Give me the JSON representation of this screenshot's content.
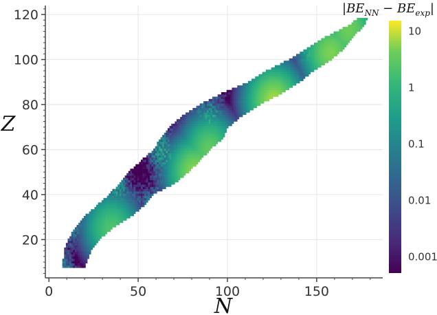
{
  "chart_data": {
    "type": "heatmap",
    "xlabel": "N",
    "ylabel": "Z",
    "colorbar_label": "|BE_NN − BE_exp|",
    "colorbar_label_parts": {
      "open": "|",
      "base1": "BE",
      "sub1": "NN",
      "minus": " − ",
      "base2": "BE",
      "sub2": "exp",
      "close": "|"
    },
    "x_ticks": [
      "0",
      "50",
      "100",
      "150"
    ],
    "y_ticks": [
      "20",
      "40",
      "60",
      "80",
      "100",
      "120"
    ],
    "xlim": [
      -2,
      187
    ],
    "ylim": [
      3,
      124
    ],
    "colorbar": {
      "scale": "log",
      "range": [
        0.0005,
        15
      ],
      "ticks": [
        "10",
        "1",
        "0.1",
        "0.01",
        "0.001"
      ],
      "tick_values": [
        10,
        1,
        0.1,
        0.01,
        0.001
      ],
      "colormap": "viridis"
    },
    "grid": true,
    "nuclide_region": {
      "description": "valley of stability, Z from 8 to 118",
      "n_range_by_z": [
        [
          8,
          8,
          20
        ],
        [
          15,
          9,
          23
        ],
        [
          20,
          11,
          28
        ],
        [
          25,
          15,
          35
        ],
        [
          30,
          20,
          45
        ],
        [
          35,
          27,
          53
        ],
        [
          40,
          34,
          58
        ],
        [
          45,
          40,
          70
        ],
        [
          50,
          45,
          78
        ],
        [
          55,
          52,
          84
        ],
        [
          60,
          59,
          90
        ],
        [
          65,
          63,
          97
        ],
        [
          70,
          68,
          100
        ],
        [
          75,
          75,
          108
        ],
        [
          80,
          85,
          118
        ],
        [
          85,
          97,
          130
        ],
        [
          90,
          112,
          140
        ],
        [
          95,
          122,
          148
        ],
        [
          100,
          135,
          158
        ],
        [
          105,
          145,
          165
        ],
        [
          110,
          155,
          170
        ],
        [
          115,
          168,
          176
        ],
        [
          118,
          173,
          178
        ]
      ],
      "hotspots": [
        {
          "N": 82,
          "Z": 50,
          "value": 6
        },
        {
          "N": 126,
          "Z": 82,
          "value": 7
        },
        {
          "N": 158,
          "Z": 103,
          "value": 5
        },
        {
          "N": 35,
          "Z": 25,
          "value": 2
        },
        {
          "N": 90,
          "Z": 60,
          "value": 3
        },
        {
          "N": 168,
          "Z": 113,
          "value": 4
        }
      ]
    }
  }
}
